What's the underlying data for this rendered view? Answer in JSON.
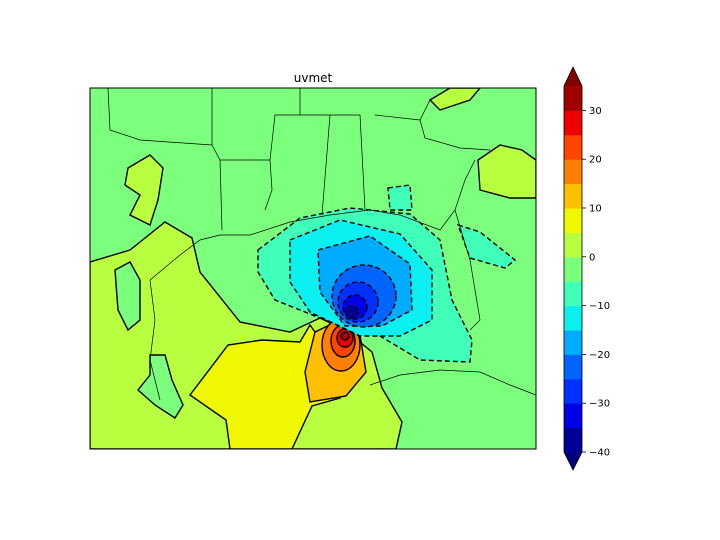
{
  "title": "uvmet",
  "colorbar": {
    "levels": [
      -40,
      -35,
      -30,
      -25,
      -20,
      -15,
      -10,
      -5,
      0,
      5,
      10,
      15,
      20,
      25,
      30,
      35
    ],
    "tick_labels": [
      "−40",
      "−30",
      "−20",
      "−10",
      "0",
      "10",
      "20",
      "30"
    ],
    "tick_values": [
      -40,
      -30,
      -20,
      -10,
      0,
      10,
      20,
      30
    ],
    "extend": "both",
    "colors": [
      "#000096",
      "#0000e6",
      "#0030ff",
      "#0064ff",
      "#00acff",
      "#0af0f0",
      "#40ffb8",
      "#7cff7c",
      "#b8ff40",
      "#f0f800",
      "#ffc000",
      "#ff8000",
      "#ff4400",
      "#ee0000",
      "#a00000"
    ],
    "under_color": "#00007f",
    "over_color": "#800000"
  },
  "map": {
    "colormap": "jet",
    "negative_contours": "dashed",
    "positive_contours": "solid"
  }
}
